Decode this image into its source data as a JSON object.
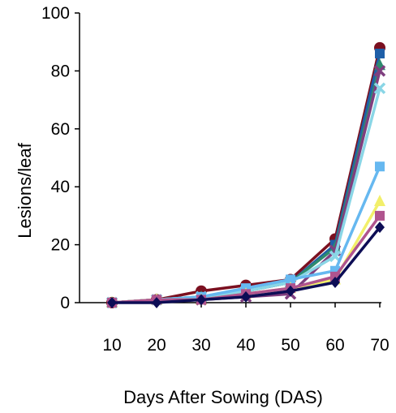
{
  "chart_data": {
    "type": "line",
    "title": "",
    "xlabel": "Days After Sowing (DAS)",
    "ylabel": "Lesions/leaf",
    "x": [
      10,
      20,
      30,
      40,
      50,
      60,
      70
    ],
    "ylim": [
      0,
      100
    ],
    "yticks": [
      0,
      20,
      40,
      60,
      80,
      100
    ],
    "grid": false,
    "legend": "none",
    "series": [
      {
        "color": "#7b1020",
        "marker": "circle",
        "values": [
          0,
          1,
          4,
          6,
          8,
          22,
          88
        ]
      },
      {
        "color": "#1f5fa8",
        "marker": "square",
        "values": [
          0,
          1,
          2,
          4,
          7,
          20,
          86
        ]
      },
      {
        "color": "#2e8b6f",
        "marker": "triangle",
        "values": [
          0,
          1,
          2,
          4,
          7,
          19,
          82
        ]
      },
      {
        "color": "#7f3f7f",
        "marker": "x",
        "values": [
          0,
          1,
          1,
          2,
          3,
          18,
          80
        ]
      },
      {
        "color": "#8ad6e6",
        "marker": "x",
        "values": [
          0,
          1,
          2,
          4,
          7,
          16,
          74
        ]
      },
      {
        "color": "#66b8f0",
        "marker": "square",
        "values": [
          0,
          1,
          2,
          5,
          8,
          11,
          47
        ]
      },
      {
        "color": "#f2ef6a",
        "marker": "triangle",
        "values": [
          0,
          1,
          1,
          3,
          5,
          8,
          35
        ]
      },
      {
        "color": "#b0548e",
        "marker": "square",
        "values": [
          0,
          1,
          1,
          3,
          5,
          9,
          30
        ]
      },
      {
        "color": "#0d0d55",
        "marker": "diamond",
        "values": [
          0,
          0,
          1,
          2,
          4,
          7,
          26
        ]
      }
    ]
  }
}
